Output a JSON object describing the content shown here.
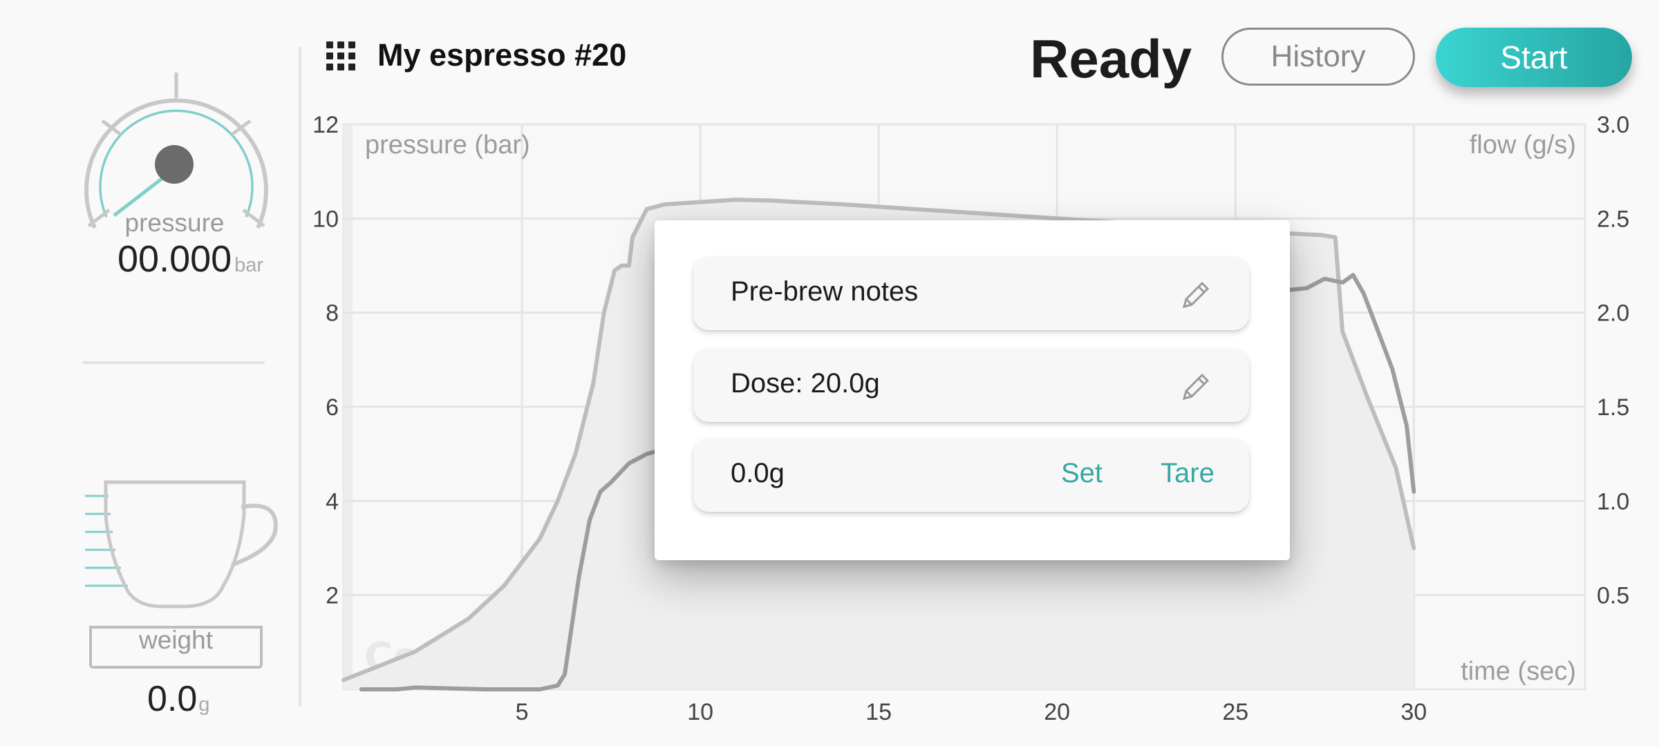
{
  "header": {
    "title": "My espresso #20",
    "status": "Ready",
    "history_label": "History",
    "start_label": "Start"
  },
  "pressure_gauge": {
    "label": "pressure",
    "value": "00.000",
    "unit": "bar"
  },
  "weight_gauge": {
    "label": "weight",
    "value": "0.0",
    "unit": "g"
  },
  "dialog": {
    "prebrew_label": "Pre-brew notes",
    "dose_label": "Dose: 20.0g",
    "scale_value": "0.0g",
    "set_label": "Set",
    "tare_label": "Tare"
  },
  "icons": [
    "apps-grid-icon",
    "pencil-icon",
    "cup-icon",
    "gauge-icon"
  ],
  "colors": {
    "accent": "#36a8a2",
    "start_from": "#3ad4d0",
    "start_to": "#26a5a2"
  },
  "chart_data": {
    "type": "line",
    "watermark": "Coffee Flow",
    "xlabel": "time (sec)",
    "ylabel_left": "pressure (bar)",
    "ylabel_right": "flow (g/s)",
    "xlim": [
      0,
      34.8
    ],
    "ylim_left": [
      0,
      12
    ],
    "ylim_right": [
      0,
      3.0
    ],
    "x_ticks": [
      5,
      10,
      15,
      20,
      25,
      30
    ],
    "y_ticks_left": [
      2,
      4,
      6,
      8,
      10,
      12
    ],
    "y_ticks_right": [
      "0.5",
      "1.0",
      "1.5",
      "2.0",
      "2.5",
      "3.0"
    ],
    "grid": true,
    "series": [
      {
        "axis": "left",
        "color": "#bdbdbd",
        "points": [
          [
            0,
            0.2
          ],
          [
            2,
            0.8
          ],
          [
            3.5,
            1.5
          ],
          [
            4.5,
            2.2
          ],
          [
            5.5,
            3.2
          ],
          [
            6,
            4
          ],
          [
            6.5,
            5
          ],
          [
            7,
            6.5
          ],
          [
            7.3,
            8
          ],
          [
            7.6,
            8.9
          ],
          [
            7.8,
            9
          ],
          [
            8,
            9
          ],
          [
            8.1,
            9.6
          ],
          [
            8.5,
            10.2
          ],
          [
            9,
            10.3
          ],
          [
            10,
            10.35
          ],
          [
            11,
            10.4
          ],
          [
            12,
            10.38
          ],
          [
            14,
            10.3
          ],
          [
            16,
            10.2
          ],
          [
            18,
            10.1
          ],
          [
            20,
            10
          ],
          [
            22,
            9.9
          ],
          [
            24,
            9.8
          ],
          [
            26,
            9.7
          ],
          [
            27.4,
            9.65
          ],
          [
            27.8,
            9.6
          ],
          [
            28,
            7.6
          ],
          [
            28.7,
            6.2
          ],
          [
            29.5,
            4.7
          ],
          [
            30,
            3
          ]
        ]
      },
      {
        "axis": "right",
        "color": "#9d9d9d",
        "points": [
          [
            0.5,
            0
          ],
          [
            1.5,
            0
          ],
          [
            2,
            0.01
          ],
          [
            4,
            0
          ],
          [
            5.5,
            0
          ],
          [
            6,
            0.02
          ],
          [
            6.2,
            0.08
          ],
          [
            6.6,
            0.6
          ],
          [
            6.9,
            0.9
          ],
          [
            7.2,
            1.05
          ],
          [
            7.5,
            1.1
          ],
          [
            8,
            1.2
          ],
          [
            8.5,
            1.25
          ],
          [
            8.7,
            1.26
          ],
          [
            25.5,
            2.2
          ],
          [
            26,
            2.15
          ],
          [
            26.5,
            2.12
          ],
          [
            27,
            2.13
          ],
          [
            27.5,
            2.18
          ],
          [
            28,
            2.16
          ],
          [
            28.3,
            2.2
          ],
          [
            28.6,
            2.1
          ],
          [
            29,
            1.9
          ],
          [
            29.4,
            1.7
          ],
          [
            29.8,
            1.4
          ],
          [
            30,
            1.05
          ]
        ]
      }
    ]
  }
}
